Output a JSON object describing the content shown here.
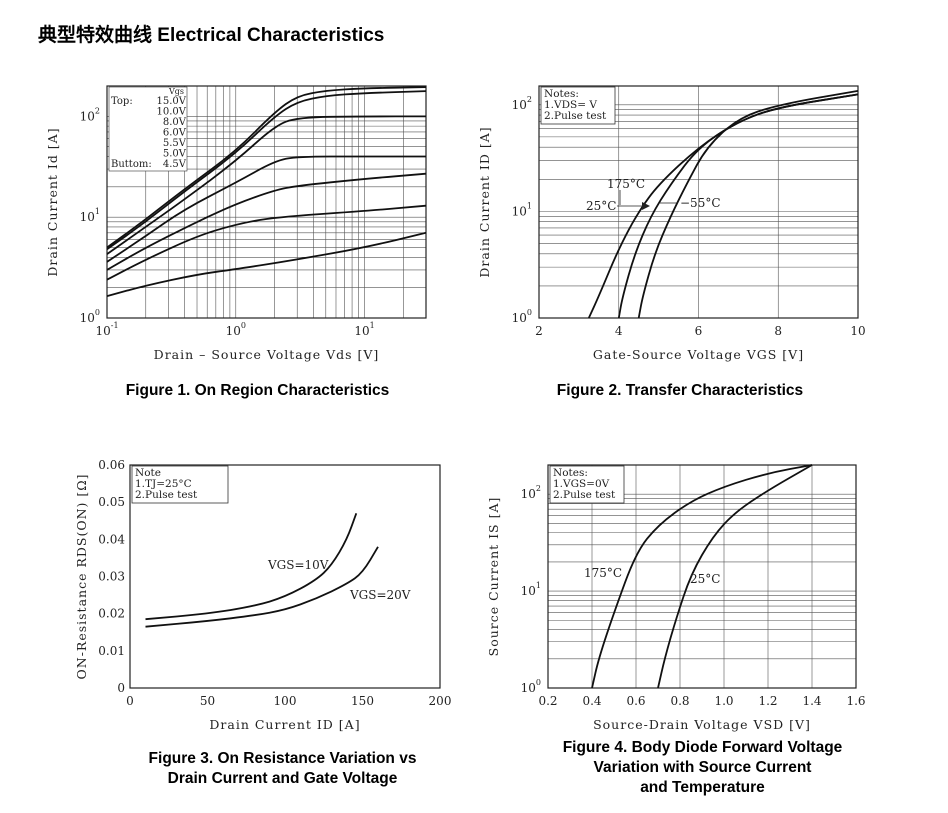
{
  "title": "典型特效曲线   Electrical Characteristics",
  "figures": [
    {
      "caption": [
        "Figure 1. On Region Characteristics"
      ]
    },
    {
      "caption": [
        "Figure 2. Transfer Characteristics"
      ]
    },
    {
      "caption": [
        "Figure 3. On Resistance Variation vs",
        "Drain Current and Gate Voltage"
      ]
    },
    {
      "caption": [
        "Figure 4. Body Diode Forward Voltage",
        "Variation with Source Current",
        "and Temperature"
      ]
    }
  ],
  "chart_data": [
    {
      "type": "line",
      "title": "Figure 1. On Region Characteristics",
      "xlabel": "Drain - Source Voltage  V₂ₛ [V]",
      "xlabel_text": "Drain – Source Voltage  Vds [V]",
      "ylabel_text": "Drain Current  Id [A]",
      "xscale": "log",
      "yscale": "log",
      "xlim": [
        0.1,
        30
      ],
      "ylim": [
        1,
        200
      ],
      "xticks": [
        {
          "v": 0.1,
          "base": "10",
          "exp": "-1"
        },
        {
          "v": 1,
          "base": "10",
          "exp": "0"
        },
        {
          "v": 10,
          "base": "10",
          "exp": "1"
        }
      ],
      "yticks": [
        {
          "v": 1,
          "base": "10",
          "exp": "0"
        },
        {
          "v": 10,
          "base": "10",
          "exp": "1"
        },
        {
          "v": 100,
          "base": "10",
          "exp": "2"
        }
      ],
      "legend_head": "Vgs",
      "legend": [
        {
          "prefix": "Top:",
          "label": "15.0V"
        },
        {
          "prefix": "",
          "label": "10.0V"
        },
        {
          "prefix": "",
          "label": "8.0V"
        },
        {
          "prefix": "",
          "label": "6.0V"
        },
        {
          "prefix": "",
          "label": "5.5V"
        },
        {
          "prefix": "",
          "label": "5.0V"
        },
        {
          "prefix": "Buttom:",
          "label": "4.5V"
        }
      ],
      "series": [
        {
          "x": [
            0.1,
            0.2,
            0.4,
            1,
            2,
            3,
            5,
            10,
            30
          ],
          "y": [
            5,
            9.5,
            19,
            45,
            110,
            160,
            180,
            190,
            195
          ]
        },
        {
          "x": [
            0.1,
            0.2,
            0.4,
            1,
            2,
            3,
            5,
            10,
            30
          ],
          "y": [
            4.8,
            9,
            18,
            43,
            100,
            140,
            160,
            170,
            178
          ]
        },
        {
          "x": [
            0.1,
            0.2,
            0.4,
            1,
            2,
            3,
            10,
            30
          ],
          "y": [
            4.3,
            8,
            15,
            36,
            80,
            98,
            100,
            100
          ]
        },
        {
          "x": [
            0.1,
            0.2,
            0.4,
            1,
            2,
            3,
            10,
            30
          ],
          "y": [
            3.6,
            6.5,
            12,
            22,
            36,
            40,
            40,
            40
          ]
        },
        {
          "x": [
            0.1,
            0.2,
            0.5,
            1,
            2,
            3,
            10,
            30
          ],
          "y": [
            3,
            5,
            9,
            13.5,
            18.5,
            20.5,
            24,
            27
          ]
        },
        {
          "x": [
            0.1,
            0.2,
            0.5,
            1,
            2,
            10,
            30
          ],
          "y": [
            2.4,
            3.8,
            6.5,
            8.5,
            10,
            11.5,
            13
          ]
        },
        {
          "x": [
            0.1,
            0.2,
            0.5,
            1,
            3,
            10,
            30
          ],
          "y": [
            1.65,
            2.1,
            2.7,
            3.05,
            3.8,
            5,
            7
          ]
        }
      ]
    },
    {
      "type": "line",
      "title": "Figure 2. Transfer Characteristics",
      "xlabel_text": "Gate-Source Voltage VGS [V]",
      "ylabel_text": "Drain Current ID [A]",
      "xscale": "linear",
      "yscale": "log",
      "xlim": [
        2,
        10
      ],
      "ylim": [
        1,
        150
      ],
      "xticks": [
        2,
        4,
        6,
        8,
        10
      ],
      "yticks": [
        {
          "v": 1,
          "base": "10",
          "exp": "0"
        },
        {
          "v": 10,
          "base": "10",
          "exp": "1"
        },
        {
          "v": 100,
          "base": "10",
          "exp": "2"
        }
      ],
      "notes": [
        "Notes:",
        "1.VDS=   V",
        "2.Pulse  test"
      ],
      "annotations": [
        "175°C",
        "25°C",
        "−55°C"
      ],
      "series": [
        {
          "name": "175°C",
          "x": [
            3.25,
            3.5,
            4,
            4.5,
            5,
            6,
            7,
            8,
            10
          ],
          "y": [
            1,
            1.6,
            4.5,
            10,
            18,
            40,
            70,
            95,
            125
          ]
        },
        {
          "name": "25°C",
          "x": [
            4.0,
            4.1,
            4.4,
            4.8,
            5.3,
            6,
            7,
            8,
            10
          ],
          "y": [
            1,
            1.6,
            4,
            9,
            18,
            40,
            70,
            95,
            125
          ]
        },
        {
          "name": "−55°C",
          "x": [
            4.5,
            4.6,
            4.9,
            5.3,
            5.7,
            6.2,
            7,
            8,
            10
          ],
          "y": [
            1,
            1.6,
            4,
            9,
            18,
            40,
            75,
            100,
            135
          ]
        }
      ]
    },
    {
      "type": "line",
      "title": "Figure 3. On Resistance Variation vs Drain Current and Gate Voltage",
      "xlabel_text": "Drain Current ID [A]",
      "ylabel_text": "ON-Resistance RDS(ON) [Ω]",
      "xscale": "linear",
      "yscale": "linear",
      "xlim": [
        0,
        200
      ],
      "ylim": [
        0,
        0.06
      ],
      "xticks": [
        0,
        50,
        100,
        150,
        200
      ],
      "yticks": [
        "0",
        "0.01",
        "0.02",
        "0.03",
        "0.04",
        "0.05",
        "0.06"
      ],
      "notes": [
        "Note",
        "1.TJ=25°C",
        "2.Pulse  test"
      ],
      "annotations": [
        "VGS=10V",
        "VGS=20V"
      ],
      "series": [
        {
          "name": "VGS=10V",
          "x": [
            10,
            50,
            80,
            100,
            120,
            130,
            140,
            146
          ],
          "y": [
            0.0185,
            0.02,
            0.022,
            0.0245,
            0.029,
            0.033,
            0.04,
            0.047
          ]
        },
        {
          "name": "VGS=20V",
          "x": [
            10,
            50,
            80,
            100,
            120,
            140,
            150,
            160
          ],
          "y": [
            0.0165,
            0.018,
            0.0195,
            0.021,
            0.024,
            0.028,
            0.031,
            0.038
          ]
        }
      ]
    },
    {
      "type": "line",
      "title": "Figure 4. Body Diode Forward Voltage Variation with Source Current and Temperature",
      "xlabel_text": "Source-Drain Voltage VSD [V]",
      "ylabel_text": "Source Current IS [A]",
      "xscale": "linear",
      "yscale": "log",
      "xlim": [
        0.2,
        1.6
      ],
      "ylim": [
        1,
        200
      ],
      "xticks": [
        "0.2",
        "0.4",
        "0.6",
        "0.8",
        "1.0",
        "1.2",
        "1.4",
        "1.6"
      ],
      "yticks": [
        {
          "v": 1,
          "base": "10",
          "exp": "0"
        },
        {
          "v": 10,
          "base": "10",
          "exp": "1"
        },
        {
          "v": 100,
          "base": "10",
          "exp": "2"
        }
      ],
      "notes": [
        "Notes:",
        "1.VGS=0V",
        "2.Pulse  test"
      ],
      "annotations": [
        "175°C",
        "25°C"
      ],
      "series": [
        {
          "name": "175°C",
          "x": [
            0.4,
            0.43,
            0.5,
            0.6,
            0.7,
            0.85,
            1.0,
            1.2,
            1.4
          ],
          "y": [
            1,
            2,
            6,
            25,
            48,
            85,
            120,
            165,
            200
          ]
        },
        {
          "name": "25°C",
          "x": [
            0.7,
            0.73,
            0.78,
            0.85,
            0.95,
            1.05,
            1.2,
            1.4
          ],
          "y": [
            1,
            2,
            5,
            15,
            37,
            65,
            110,
            200
          ]
        }
      ]
    }
  ]
}
